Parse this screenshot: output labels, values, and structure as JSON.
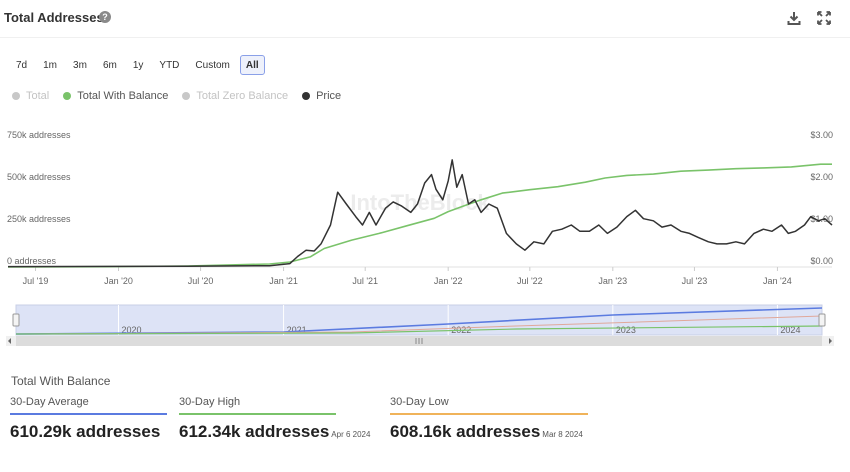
{
  "header": {
    "title": "Total Addresses",
    "help_icon": "help-circle-icon",
    "download_icon": "download-icon",
    "expand_icon": "expand-icon"
  },
  "ranges": [
    {
      "label": "7d",
      "active": false
    },
    {
      "label": "1m",
      "active": false
    },
    {
      "label": "3m",
      "active": false
    },
    {
      "label": "6m",
      "active": false
    },
    {
      "label": "1y",
      "active": false
    },
    {
      "label": "YTD",
      "active": false
    },
    {
      "label": "Custom",
      "active": false
    },
    {
      "label": "All",
      "active": true
    }
  ],
  "legend": [
    {
      "label": "Total",
      "color": "#c8c8c8",
      "enabled": false
    },
    {
      "label": "Total With Balance",
      "color": "#7ac36a",
      "enabled": true
    },
    {
      "label": "Total Zero Balance",
      "color": "#c8c8c8",
      "enabled": false
    },
    {
      "label": "Price",
      "color": "#333333",
      "enabled": true
    }
  ],
  "chart_data": {
    "type": "line",
    "watermark": "IntoTheBlock",
    "x_range": [
      "2019-05-01",
      "2024-05-01"
    ],
    "x_ticks": [
      {
        "date": "2019-07-01",
        "label": "Jul '19"
      },
      {
        "date": "2020-01-01",
        "label": "Jan '20"
      },
      {
        "date": "2020-07-01",
        "label": "Jul '20"
      },
      {
        "date": "2021-01-01",
        "label": "Jan '21"
      },
      {
        "date": "2021-07-01",
        "label": "Jul '21"
      },
      {
        "date": "2022-01-01",
        "label": "Jan '22"
      },
      {
        "date": "2022-07-01",
        "label": "Jul '22"
      },
      {
        "date": "2023-01-01",
        "label": "Jan '23"
      },
      {
        "date": "2023-07-01",
        "label": "Jul '23"
      },
      {
        "date": "2024-01-01",
        "label": "Jan '24"
      }
    ],
    "y_left": {
      "range": [
        0,
        750000
      ],
      "ticks": [
        {
          "value": 0,
          "label": "0 addresses"
        },
        {
          "value": 250000,
          "label": "250k addresses"
        },
        {
          "value": 500000,
          "label": "500k addresses"
        },
        {
          "value": 750000,
          "label": "750k addresses"
        }
      ]
    },
    "y_right": {
      "range": [
        0,
        3
      ],
      "ticks": [
        {
          "value": 0,
          "label": "$0.00"
        },
        {
          "value": 1,
          "label": "$1.00"
        },
        {
          "value": 2,
          "label": "$2.00"
        },
        {
          "value": 3,
          "label": "$3.00"
        }
      ]
    },
    "series": [
      {
        "name": "Total With Balance",
        "axis": "left",
        "color": "#7ac36a",
        "points": [
          [
            "2019-05-01",
            0
          ],
          [
            "2019-12-01",
            2000
          ],
          [
            "2020-06-01",
            6000
          ],
          [
            "2020-12-01",
            18000
          ],
          [
            "2021-01-15",
            30000
          ],
          [
            "2021-03-01",
            60000
          ],
          [
            "2021-04-01",
            110000
          ],
          [
            "2021-06-01",
            160000
          ],
          [
            "2021-08-01",
            200000
          ],
          [
            "2021-10-01",
            245000
          ],
          [
            "2021-12-01",
            290000
          ],
          [
            "2022-01-01",
            330000
          ],
          [
            "2022-02-01",
            360000
          ],
          [
            "2022-03-15",
            400000
          ],
          [
            "2022-05-01",
            440000
          ],
          [
            "2022-07-01",
            460000
          ],
          [
            "2022-09-01",
            478000
          ],
          [
            "2022-11-01",
            505000
          ],
          [
            "2022-12-15",
            530000
          ],
          [
            "2023-02-01",
            545000
          ],
          [
            "2023-04-01",
            553000
          ],
          [
            "2023-06-01",
            570000
          ],
          [
            "2023-08-01",
            577000
          ],
          [
            "2023-10-01",
            585000
          ],
          [
            "2023-12-01",
            590000
          ],
          [
            "2024-02-01",
            596000
          ],
          [
            "2024-04-06",
            612000
          ],
          [
            "2024-05-01",
            612000
          ]
        ]
      },
      {
        "name": "Price",
        "axis": "right",
        "color": "#333333",
        "points": [
          [
            "2019-05-01",
            0.01
          ],
          [
            "2020-06-01",
            0.02
          ],
          [
            "2020-12-01",
            0.03
          ],
          [
            "2021-01-15",
            0.08
          ],
          [
            "2021-02-01",
            0.25
          ],
          [
            "2021-02-20",
            0.4
          ],
          [
            "2021-03-10",
            0.38
          ],
          [
            "2021-03-25",
            0.55
          ],
          [
            "2021-04-15",
            1.0
          ],
          [
            "2021-05-01",
            1.78
          ],
          [
            "2021-05-20",
            1.5
          ],
          [
            "2021-06-10",
            1.2
          ],
          [
            "2021-06-25",
            1.0
          ],
          [
            "2021-07-10",
            1.3
          ],
          [
            "2021-07-25",
            1.0
          ],
          [
            "2021-08-15",
            1.4
          ],
          [
            "2021-09-01",
            1.55
          ],
          [
            "2021-09-20",
            1.45
          ],
          [
            "2021-10-10",
            1.3
          ],
          [
            "2021-10-25",
            1.5
          ],
          [
            "2021-11-10",
            2.0
          ],
          [
            "2021-11-25",
            2.2
          ],
          [
            "2021-12-05",
            1.85
          ],
          [
            "2021-12-20",
            1.6
          ],
          [
            "2022-01-01",
            2.05
          ],
          [
            "2022-01-10",
            2.55
          ],
          [
            "2022-01-20",
            1.9
          ],
          [
            "2022-02-01",
            2.2
          ],
          [
            "2022-02-15",
            1.5
          ],
          [
            "2022-03-01",
            1.6
          ],
          [
            "2022-03-15",
            1.3
          ],
          [
            "2022-04-01",
            1.5
          ],
          [
            "2022-04-20",
            1.4
          ],
          [
            "2022-05-10",
            0.8
          ],
          [
            "2022-06-01",
            0.55
          ],
          [
            "2022-06-20",
            0.4
          ],
          [
            "2022-07-10",
            0.6
          ],
          [
            "2022-08-01",
            0.55
          ],
          [
            "2022-08-20",
            0.85
          ],
          [
            "2022-09-10",
            0.9
          ],
          [
            "2022-10-01",
            1.0
          ],
          [
            "2022-10-20",
            0.85
          ],
          [
            "2022-11-10",
            0.85
          ],
          [
            "2022-12-01",
            1.0
          ],
          [
            "2022-12-20",
            0.8
          ],
          [
            "2023-01-10",
            0.95
          ],
          [
            "2023-02-01",
            1.2
          ],
          [
            "2023-02-20",
            1.35
          ],
          [
            "2023-03-10",
            1.15
          ],
          [
            "2023-04-01",
            1.1
          ],
          [
            "2023-04-20",
            0.95
          ],
          [
            "2023-05-10",
            1.0
          ],
          [
            "2023-06-01",
            0.85
          ],
          [
            "2023-06-20",
            0.8
          ],
          [
            "2023-07-10",
            0.7
          ],
          [
            "2023-08-01",
            0.6
          ],
          [
            "2023-08-20",
            0.55
          ],
          [
            "2023-09-10",
            0.55
          ],
          [
            "2023-10-01",
            0.6
          ],
          [
            "2023-10-20",
            0.55
          ],
          [
            "2023-11-10",
            0.8
          ],
          [
            "2023-12-01",
            0.9
          ],
          [
            "2023-12-20",
            0.85
          ],
          [
            "2024-01-10",
            1.0
          ],
          [
            "2024-01-25",
            0.8
          ],
          [
            "2024-02-10",
            0.85
          ],
          [
            "2024-03-01",
            1.0
          ],
          [
            "2024-03-15",
            1.2
          ],
          [
            "2024-04-01",
            1.1
          ],
          [
            "2024-04-15",
            1.15
          ],
          [
            "2024-05-01",
            1.0
          ]
        ]
      }
    ],
    "navigator": {
      "x_labels": [
        "2020",
        "2021",
        "2022",
        "2023",
        "2024"
      ],
      "series_colors": [
        "#5b7be0",
        "#e0a89a",
        "#7ac36a"
      ]
    }
  },
  "stats": {
    "title": "Total With Balance",
    "items": [
      {
        "label": "30-Day Average",
        "value": "610.29k addresses",
        "date": "",
        "color": "#5b7be0"
      },
      {
        "label": "30-Day High",
        "value": "612.34k addresses",
        "date": "Apr 6 2024",
        "color": "#7ac36a"
      },
      {
        "label": "30-Day Low",
        "value": "608.16k addresses",
        "date": "Mar 8 2024",
        "color": "#f0b35a"
      }
    ]
  }
}
